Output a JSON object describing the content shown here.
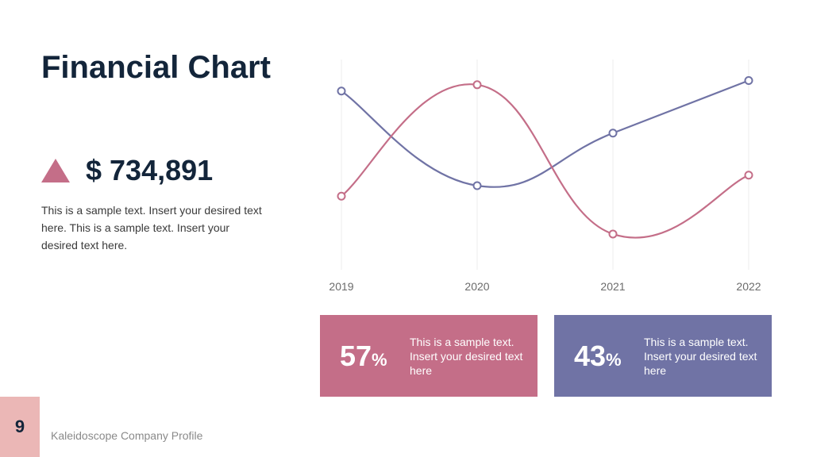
{
  "slide": {
    "title": "Financial Chart",
    "amount": "$ 734,891",
    "description": "This is a sample text. Insert your desired text here. This is a sample text. Insert your desired text here."
  },
  "stats": [
    {
      "value": "57",
      "symbol": "%",
      "text": "This is a sample text. Insert your desired text here",
      "color": "#c46e88"
    },
    {
      "value": "43",
      "symbol": "%",
      "text": "This is a sample text. Insert your desired text here",
      "color": "#7073a5"
    }
  ],
  "footer": {
    "page_number": "9",
    "text": "Kaleidoscope Company Profile"
  },
  "colors": {
    "title": "#13253a",
    "pink": "#c46e88",
    "purple": "#7073a5",
    "page_tab": "#ebb7b6"
  },
  "chart_data": {
    "type": "line",
    "categories": [
      "2019",
      "2020",
      "2021",
      "2022"
    ],
    "series": [
      {
        "color": "#7073a5",
        "values": [
          85,
          40,
          65,
          90
        ]
      },
      {
        "color": "#c46e88",
        "values": [
          35,
          88,
          17,
          45
        ]
      }
    ],
    "ylim": [
      0,
      100
    ],
    "grid": "vertical",
    "smooth": true
  }
}
